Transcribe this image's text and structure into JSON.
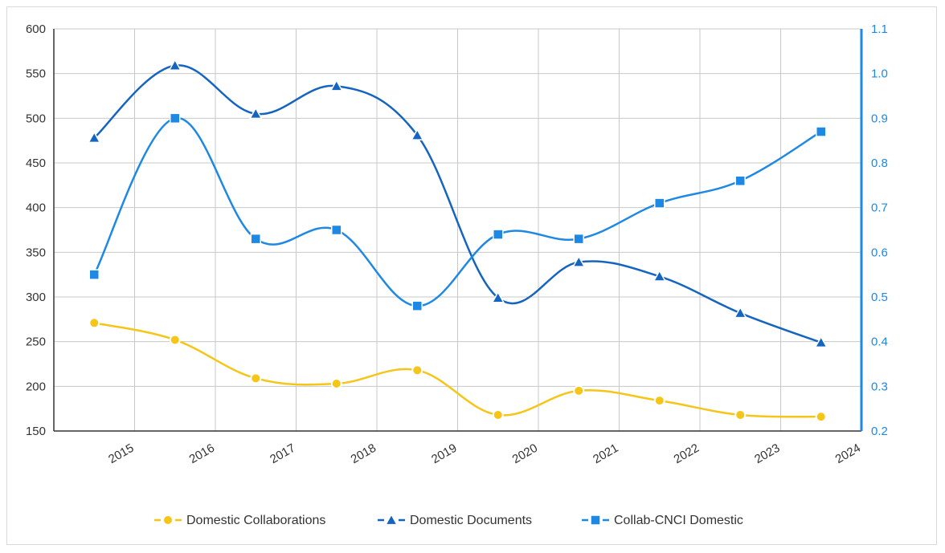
{
  "chart_data": {
    "type": "line",
    "title": "",
    "xlabel": "",
    "ylabel": "",
    "x_tick_labels": [
      "2015",
      "2016",
      "2017",
      "2018",
      "2019",
      "2020",
      "2021",
      "2022",
      "2023",
      "2024"
    ],
    "ylim_left": [
      150,
      600
    ],
    "yticks_left": [
      150,
      200,
      250,
      300,
      350,
      400,
      450,
      500,
      550,
      600
    ],
    "ylim_right": [
      0.2,
      1.1
    ],
    "yticks_right": [
      "0.2",
      "0.3",
      "0.4",
      "0.5",
      "0.6",
      "0.7",
      "0.8",
      "0.9",
      "1.0",
      "1.1"
    ],
    "grid": true,
    "legend_position": "bottom",
    "series": [
      {
        "name": "Domestic Collaborations",
        "axis": "left",
        "color": "#f5c518",
        "marker": "circle",
        "values": [
          271,
          252,
          209,
          203,
          218,
          168,
          195,
          184,
          168,
          166
        ]
      },
      {
        "name": "Domestic Documents",
        "axis": "left",
        "color": "#1565c0",
        "marker": "triangle",
        "values": [
          478,
          559,
          505,
          536,
          481,
          299,
          339,
          323,
          282,
          249
        ]
      },
      {
        "name": "Collab-CNCI Domestic",
        "axis": "right",
        "color": "#1e88e5",
        "marker": "square",
        "values": [
          0.55,
          0.9,
          0.63,
          0.65,
          0.48,
          0.64,
          0.63,
          0.71,
          0.76,
          0.87
        ]
      }
    ]
  }
}
